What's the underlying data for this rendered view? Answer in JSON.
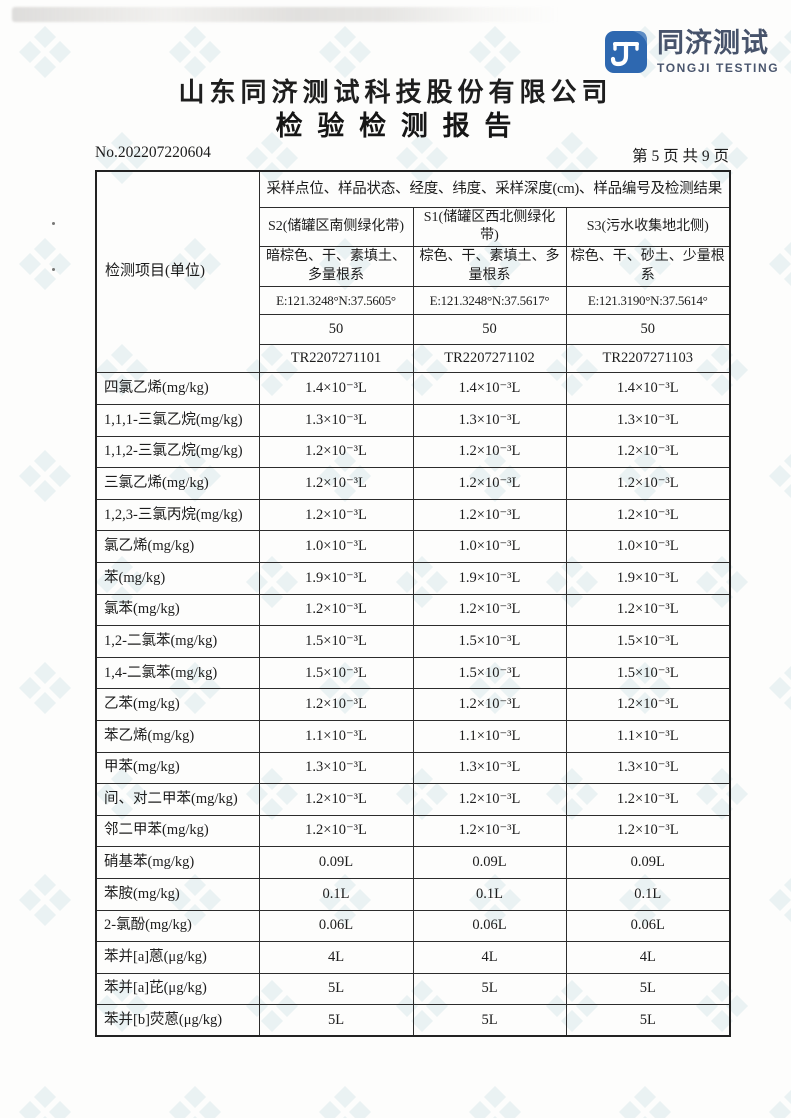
{
  "logo": {
    "icon": "tongji-monogram-icon",
    "cn": "同济测试",
    "en": "TONGJI TESTING",
    "brand_color": "#2e68b0",
    "text_color": "#47536b"
  },
  "header": {
    "company": "山东同济测试科技股份有限公司",
    "title": "检 验 检 测 报 告"
  },
  "page": {
    "report_no": "No.202207220604",
    "page_info": "第 5 页 共 9 页"
  },
  "table": {
    "corner_label": "检测项目(单位)",
    "span_header": "采样点位、样品状态、经度、纬度、采样深度(cm)、样品编号及检测结果",
    "columns": [
      {
        "point": "S2(储罐区南侧绿化带)",
        "desc": "暗棕色、干、素填土、多量根系",
        "coord": "E:121.3248°N:37.5605°",
        "depth": "50",
        "sample_no": "TR2207271101"
      },
      {
        "point": "S1(储罐区西北侧绿化带)",
        "desc": "棕色、干、素填土、多量根系",
        "coord": "E:121.3248°N:37.5617°",
        "depth": "50",
        "sample_no": "TR2207271102"
      },
      {
        "point": "S3(污水收集地北侧)",
        "desc": "棕色、干、砂土、少量根系",
        "coord": "E:121.3190°N:37.5614°",
        "depth": "50",
        "sample_no": "TR2207271103"
      }
    ],
    "rows": [
      {
        "item": "四氯乙烯(mg/kg)",
        "values": [
          "1.4×10⁻³L",
          "1.4×10⁻³L",
          "1.4×10⁻³L"
        ]
      },
      {
        "item": "1,1,1-三氯乙烷(mg/kg)",
        "values": [
          "1.3×10⁻³L",
          "1.3×10⁻³L",
          "1.3×10⁻³L"
        ]
      },
      {
        "item": "1,1,2-三氯乙烷(mg/kg)",
        "values": [
          "1.2×10⁻³L",
          "1.2×10⁻³L",
          "1.2×10⁻³L"
        ]
      },
      {
        "item": "三氯乙烯(mg/kg)",
        "values": [
          "1.2×10⁻³L",
          "1.2×10⁻³L",
          "1.2×10⁻³L"
        ]
      },
      {
        "item": "1,2,3-三氯丙烷(mg/kg)",
        "values": [
          "1.2×10⁻³L",
          "1.2×10⁻³L",
          "1.2×10⁻³L"
        ]
      },
      {
        "item": "氯乙烯(mg/kg)",
        "values": [
          "1.0×10⁻³L",
          "1.0×10⁻³L",
          "1.0×10⁻³L"
        ]
      },
      {
        "item": "苯(mg/kg)",
        "values": [
          "1.9×10⁻³L",
          "1.9×10⁻³L",
          "1.9×10⁻³L"
        ]
      },
      {
        "item": "氯苯(mg/kg)",
        "values": [
          "1.2×10⁻³L",
          "1.2×10⁻³L",
          "1.2×10⁻³L"
        ]
      },
      {
        "item": "1,2-二氯苯(mg/kg)",
        "values": [
          "1.5×10⁻³L",
          "1.5×10⁻³L",
          "1.5×10⁻³L"
        ]
      },
      {
        "item": "1,4-二氯苯(mg/kg)",
        "values": [
          "1.5×10⁻³L",
          "1.5×10⁻³L",
          "1.5×10⁻³L"
        ]
      },
      {
        "item": "乙苯(mg/kg)",
        "values": [
          "1.2×10⁻³L",
          "1.2×10⁻³L",
          "1.2×10⁻³L"
        ]
      },
      {
        "item": "苯乙烯(mg/kg)",
        "values": [
          "1.1×10⁻³L",
          "1.1×10⁻³L",
          "1.1×10⁻³L"
        ]
      },
      {
        "item": "甲苯(mg/kg)",
        "values": [
          "1.3×10⁻³L",
          "1.3×10⁻³L",
          "1.3×10⁻³L"
        ]
      },
      {
        "item": "间、对二甲苯(mg/kg)",
        "values": [
          "1.2×10⁻³L",
          "1.2×10⁻³L",
          "1.2×10⁻³L"
        ]
      },
      {
        "item": "邻二甲苯(mg/kg)",
        "values": [
          "1.2×10⁻³L",
          "1.2×10⁻³L",
          "1.2×10⁻³L"
        ]
      },
      {
        "item": "硝基苯(mg/kg)",
        "values": [
          "0.09L",
          "0.09L",
          "0.09L"
        ]
      },
      {
        "item": "苯胺(mg/kg)",
        "values": [
          "0.1L",
          "0.1L",
          "0.1L"
        ]
      },
      {
        "item": "2-氯酚(mg/kg)",
        "values": [
          "0.06L",
          "0.06L",
          "0.06L"
        ]
      },
      {
        "item": "苯并[a]蒽(μg/kg)",
        "values": [
          "4L",
          "4L",
          "4L"
        ]
      },
      {
        "item": "苯并[a]芘(μg/kg)",
        "values": [
          "5L",
          "5L",
          "5L"
        ]
      },
      {
        "item": "苯并[b]荧蒽(μg/kg)",
        "values": [
          "5L",
          "5L",
          "5L"
        ]
      }
    ]
  }
}
